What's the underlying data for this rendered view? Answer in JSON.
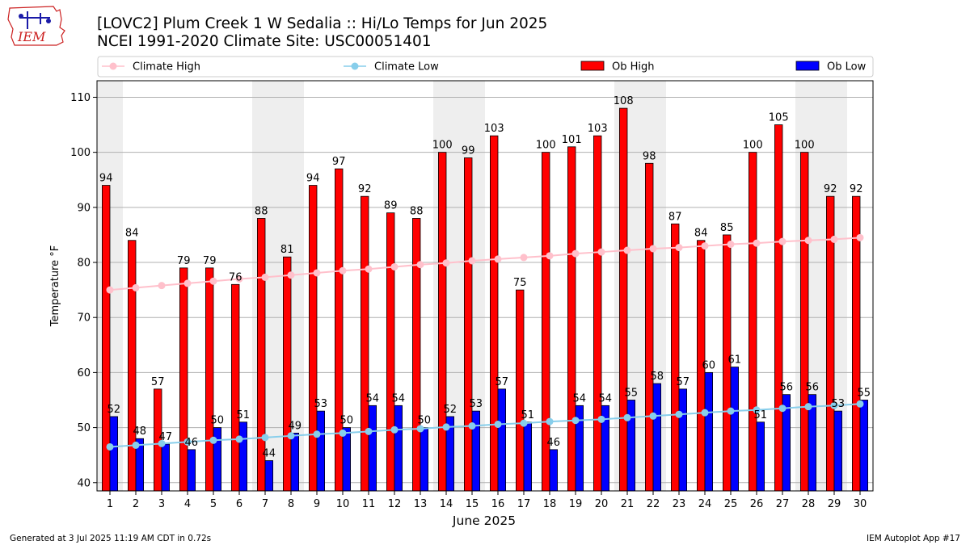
{
  "header": {
    "logo_text": "IEM",
    "title_line1": "[LOVC2] Plum Creek 1 W Sedalia :: Hi/Lo Temps for Jun 2025",
    "title_line2": "NCEI 1991-2020 Climate Site: USC00051401"
  },
  "footer": {
    "left": "Generated at 3 Jul 2025 11:19 AM CDT in 0.72s",
    "right": "IEM Autoplot App #17"
  },
  "colors": {
    "ob_high": "#ff0000",
    "ob_low": "#0000ff",
    "climate_high": "#ffc0cb",
    "climate_low": "#87ceeb",
    "weekend_shade": "#eeeeee",
    "grid": "#b0b0b0"
  },
  "chart_data": {
    "type": "bar",
    "xlabel": "June 2025",
    "ylabel": "Temperature °F",
    "ylim": [
      38.5,
      113
    ],
    "yticks": [
      40,
      50,
      60,
      70,
      80,
      90,
      100,
      110
    ],
    "grid": "horizontal",
    "legend_placement": "top",
    "x": [
      1,
      2,
      3,
      4,
      5,
      6,
      7,
      8,
      9,
      10,
      11,
      12,
      13,
      14,
      15,
      16,
      17,
      18,
      19,
      20,
      21,
      22,
      23,
      24,
      25,
      26,
      27,
      28,
      29,
      30
    ],
    "shaded_days": [
      1,
      7,
      8,
      14,
      15,
      21,
      22,
      28,
      29
    ],
    "series": [
      {
        "name": "Climate High",
        "kind": "line",
        "values": [
          75.0,
          75.4,
          75.8,
          76.2,
          76.6,
          77.0,
          77.3,
          77.7,
          78.1,
          78.5,
          78.8,
          79.2,
          79.6,
          79.9,
          80.3,
          80.6,
          80.9,
          81.2,
          81.6,
          81.9,
          82.2,
          82.5,
          82.7,
          83.0,
          83.3,
          83.5,
          83.8,
          84.0,
          84.2,
          84.5
        ]
      },
      {
        "name": "Climate Low",
        "kind": "line",
        "values": [
          46.5,
          46.8,
          47.1,
          47.4,
          47.7,
          47.9,
          48.2,
          48.5,
          48.8,
          49.0,
          49.3,
          49.6,
          49.8,
          50.1,
          50.3,
          50.6,
          50.8,
          51.1,
          51.3,
          51.5,
          51.8,
          52.1,
          52.4,
          52.7,
          53.0,
          53.2,
          53.5,
          53.8,
          54.0,
          54.3
        ]
      },
      {
        "name": "Ob High",
        "kind": "bar",
        "values": [
          94,
          84,
          57,
          79,
          79,
          76,
          88,
          81,
          94,
          97,
          92,
          89,
          88,
          100,
          99,
          103,
          75,
          100,
          101,
          103,
          108,
          98,
          87,
          84,
          85,
          100,
          105,
          100,
          92,
          92
        ]
      },
      {
        "name": "Ob Low",
        "kind": "bar",
        "values": [
          52,
          48,
          47,
          46,
          50,
          51,
          44,
          49,
          53,
          50,
          54,
          54,
          50,
          52,
          53,
          57,
          51,
          46,
          54,
          54,
          55,
          58,
          57,
          60,
          61,
          51,
          56,
          56,
          53,
          55
        ]
      }
    ]
  }
}
